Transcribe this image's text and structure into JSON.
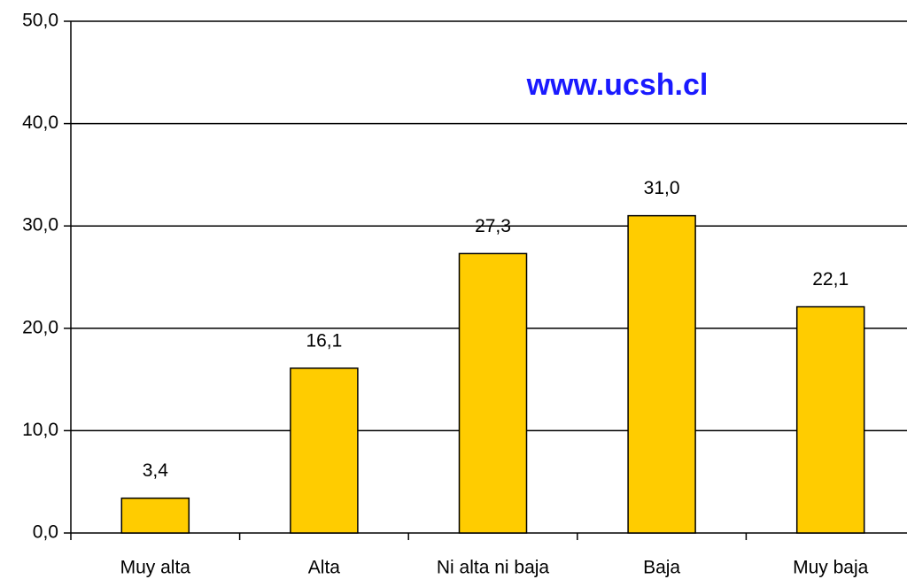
{
  "chart_data": {
    "type": "bar",
    "categories": [
      "Muy alta",
      "Alta",
      "Ni alta ni baja",
      "Baja",
      "Muy baja"
    ],
    "values": [
      3.4,
      16.1,
      27.3,
      31.0,
      22.1
    ],
    "value_labels": [
      "3,4",
      "16,1",
      "27,3",
      "31,0",
      "22,1"
    ],
    "color": "#ffcc00",
    "ylim": [
      0,
      50
    ],
    "yticks": [
      {
        "value": 0,
        "label": "0,0"
      },
      {
        "value": 10,
        "label": "10,0"
      },
      {
        "value": 20,
        "label": "20,0"
      },
      {
        "value": 30,
        "label": "30,0"
      },
      {
        "value": 40,
        "label": "40,0"
      },
      {
        "value": 50,
        "label": "50,0"
      }
    ],
    "grid": true,
    "annotation": "www.ucsh.cl"
  }
}
